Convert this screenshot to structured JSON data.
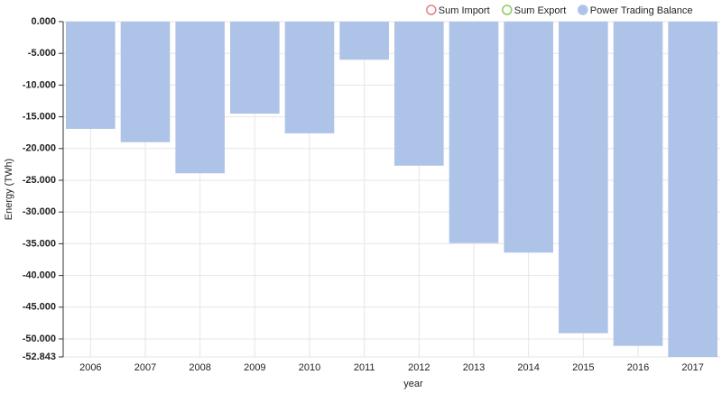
{
  "chart_data": {
    "type": "bar",
    "x_label": "year",
    "y_label": "Energy (TWh)",
    "categories": [
      "2006",
      "2007",
      "2008",
      "2009",
      "2010",
      "2011",
      "2012",
      "2013",
      "2014",
      "2015",
      "2016",
      "2017"
    ],
    "series": [
      {
        "name": "Sum Import",
        "color": "#e08080",
        "marker": "hollow",
        "values": [
          null,
          null,
          null,
          null,
          null,
          null,
          null,
          null,
          null,
          null,
          null,
          null
        ]
      },
      {
        "name": "Sum Export",
        "color": "#90c860",
        "marker": "hollow",
        "values": [
          null,
          null,
          null,
          null,
          null,
          null,
          null,
          null,
          null,
          null,
          null,
          null
        ]
      },
      {
        "name": "Power Trading Balance",
        "color": "#aec3e8",
        "marker": "filled",
        "values": [
          -16.9,
          -19.0,
          -23.9,
          -14.5,
          -17.6,
          -6.0,
          -22.7,
          -34.9,
          -36.4,
          -49.1,
          -51.1,
          -52.843
        ]
      }
    ],
    "ylim": [
      -52.843,
      0
    ],
    "yticks": [
      {
        "value": 0,
        "label": "0.000"
      },
      {
        "value": -5,
        "label": "-5.000"
      },
      {
        "value": -10,
        "label": "-10.000"
      },
      {
        "value": -15,
        "label": "-15.000"
      },
      {
        "value": -20,
        "label": "-20.000"
      },
      {
        "value": -25,
        "label": "-25.000"
      },
      {
        "value": -30,
        "label": "-30.000"
      },
      {
        "value": -35,
        "label": "-35.000"
      },
      {
        "value": -40,
        "label": "-40.000"
      },
      {
        "value": -45,
        "label": "-45.000"
      },
      {
        "value": -50,
        "label": "-50.000"
      },
      {
        "value": -52.843,
        "label": "-52.843"
      }
    ],
    "grid": true,
    "legend_position": "top-right"
  }
}
